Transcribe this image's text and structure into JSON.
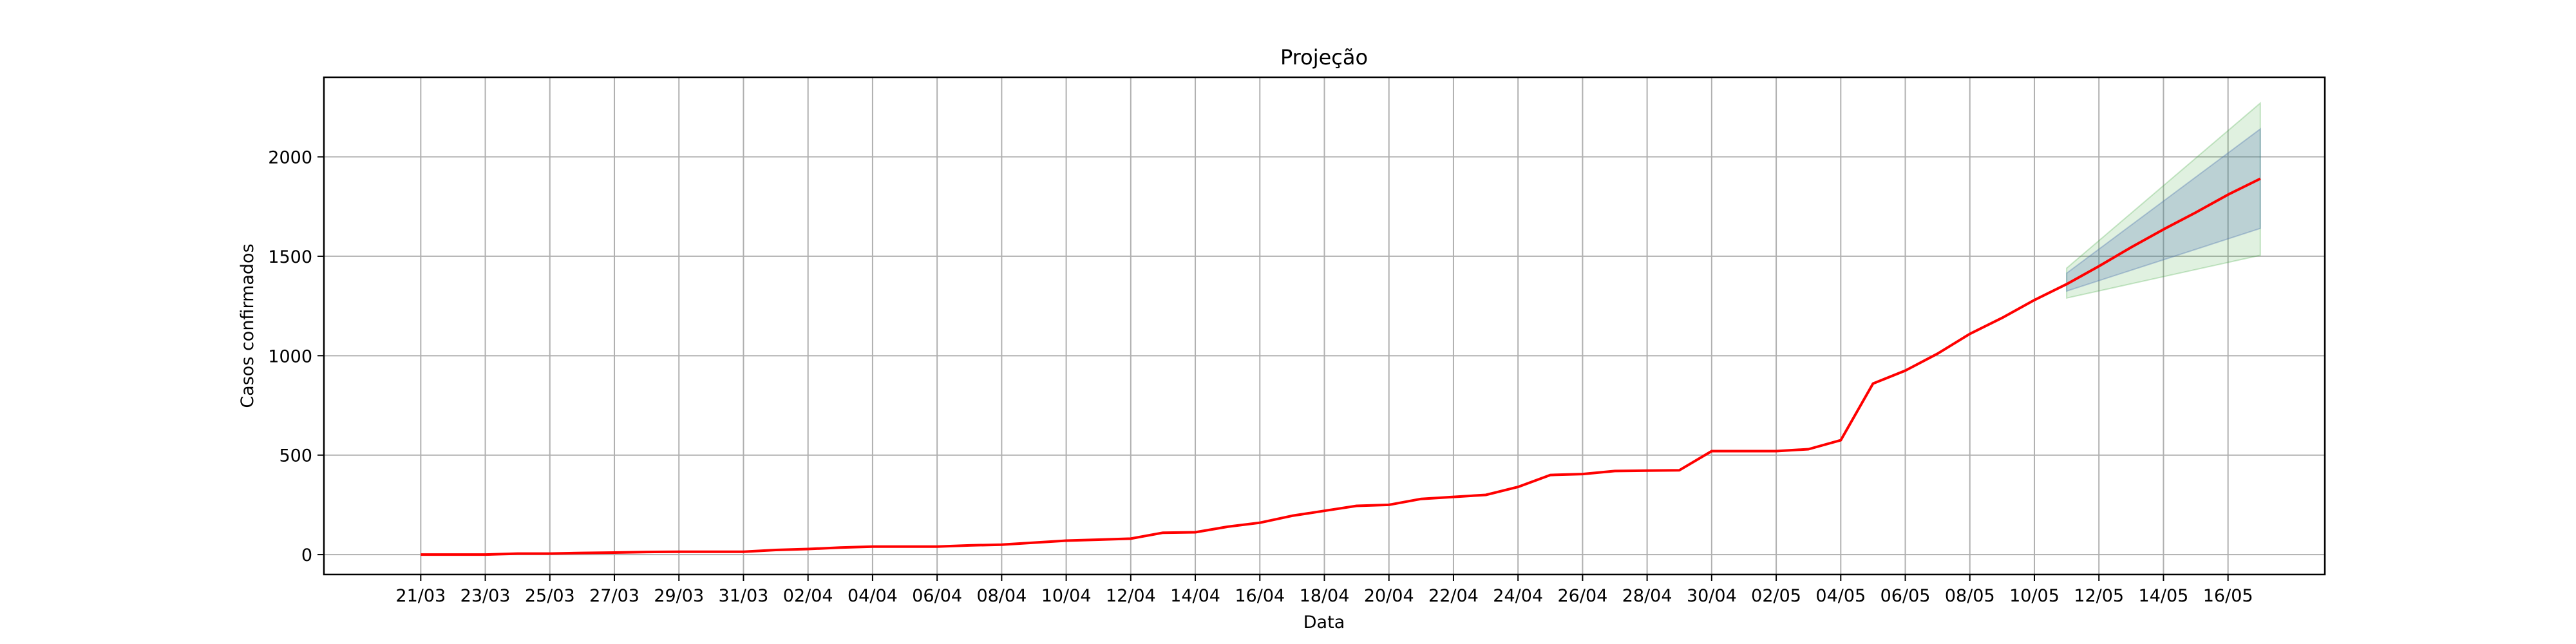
{
  "chart_data": {
    "type": "line",
    "title": "Projeção",
    "xlabel": "Data",
    "ylabel": "Casos confirmados",
    "grid": true,
    "legend": "none",
    "x_tick_labels": [
      "21/03",
      "23/03",
      "25/03",
      "27/03",
      "29/03",
      "31/03",
      "02/04",
      "04/04",
      "06/04",
      "08/04",
      "10/04",
      "12/04",
      "14/04",
      "16/04",
      "18/04",
      "20/04",
      "22/04",
      "24/04",
      "26/04",
      "28/04",
      "30/04",
      "02/05",
      "04/05",
      "06/05",
      "08/05",
      "10/05",
      "12/05",
      "14/05",
      "16/05"
    ],
    "y_ticks": [
      0,
      500,
      1000,
      1500,
      2000
    ],
    "y_tick_labels": [
      "0",
      "500",
      "1000",
      "1500",
      "2000"
    ],
    "ylim": [
      -100,
      2400
    ],
    "x_range": [
      "18/03",
      "19/05"
    ],
    "dates": [
      "21/03",
      "22/03",
      "23/03",
      "24/03",
      "25/03",
      "26/03",
      "27/03",
      "28/03",
      "29/03",
      "30/03",
      "31/03",
      "01/04",
      "02/04",
      "03/04",
      "04/04",
      "05/04",
      "06/04",
      "07/04",
      "08/04",
      "09/04",
      "10/04",
      "11/04",
      "12/04",
      "13/04",
      "14/04",
      "15/04",
      "16/04",
      "17/04",
      "18/04",
      "19/04",
      "20/04",
      "21/04",
      "22/04",
      "23/04",
      "24/04",
      "25/04",
      "26/04",
      "27/04",
      "28/04",
      "29/04",
      "30/04",
      "01/05",
      "02/05",
      "03/05",
      "04/05",
      "05/05",
      "06/05",
      "07/05",
      "08/05",
      "09/05",
      "10/05",
      "11/05",
      "12/05",
      "13/05",
      "14/05",
      "15/05",
      "16/05",
      "17/05"
    ],
    "series": [
      {
        "color": "#ff0000",
        "values": [
          0,
          0,
          0,
          5,
          5,
          8,
          10,
          13,
          14,
          14,
          14,
          23,
          28,
          35,
          40,
          40,
          40,
          46,
          50,
          60,
          70,
          75,
          80,
          110,
          112,
          140,
          160,
          195,
          220,
          245,
          250,
          280,
          290,
          300,
          340,
          400,
          405,
          420,
          422,
          424,
          520,
          520,
          520,
          530,
          575,
          860,
          925,
          1010,
          1110,
          1190,
          1280,
          1360,
          1450,
          1545,
          1635,
          1720,
          1810,
          1890
        ]
      }
    ],
    "projection_bands": [
      {
        "color": "#2ca02c",
        "opacity": 0.15,
        "dates": [
          "11/05",
          "17/05"
        ],
        "lower": [
          1290,
          1505
        ],
        "upper": [
          1440,
          2270
        ]
      },
      {
        "color": "#4c72b0",
        "opacity": 0.25,
        "dates": [
          "11/05",
          "17/05"
        ],
        "lower": [
          1325,
          1640
        ],
        "upper": [
          1415,
          2140
        ]
      }
    ]
  }
}
